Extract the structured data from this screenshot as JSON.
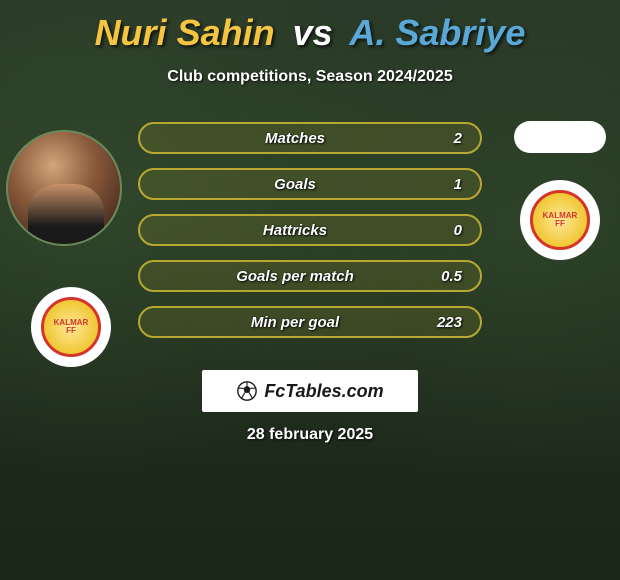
{
  "title": {
    "player1": "Nuri Sahin",
    "vs": "vs",
    "player2": "A. Sabriye",
    "player1_color": "#f5c542",
    "vs_color": "#ffffff",
    "player2_color": "#5aa8d8"
  },
  "subtitle": "Club competitions, Season 2024/2025",
  "stats": [
    {
      "label": "Matches",
      "value": "2"
    },
    {
      "label": "Goals",
      "value": "1"
    },
    {
      "label": "Hattricks",
      "value": "0"
    },
    {
      "label": "Goals per match",
      "value": "0.5"
    },
    {
      "label": "Min per goal",
      "value": "223"
    }
  ],
  "stat_row_style": {
    "border_color": "#b8a832",
    "background_fill": "rgba(184,168,50,0.15)"
  },
  "club_badge_text": "KALMAR\nFF",
  "brand": {
    "text": "FcTables.com",
    "icon_name": "soccer-ball-icon"
  },
  "date": "28 february 2025",
  "colors": {
    "page_bg": "#1a2b1d",
    "text_white": "#ffffff",
    "badge_red": "#d4342a",
    "badge_gold": "#f0c733"
  }
}
